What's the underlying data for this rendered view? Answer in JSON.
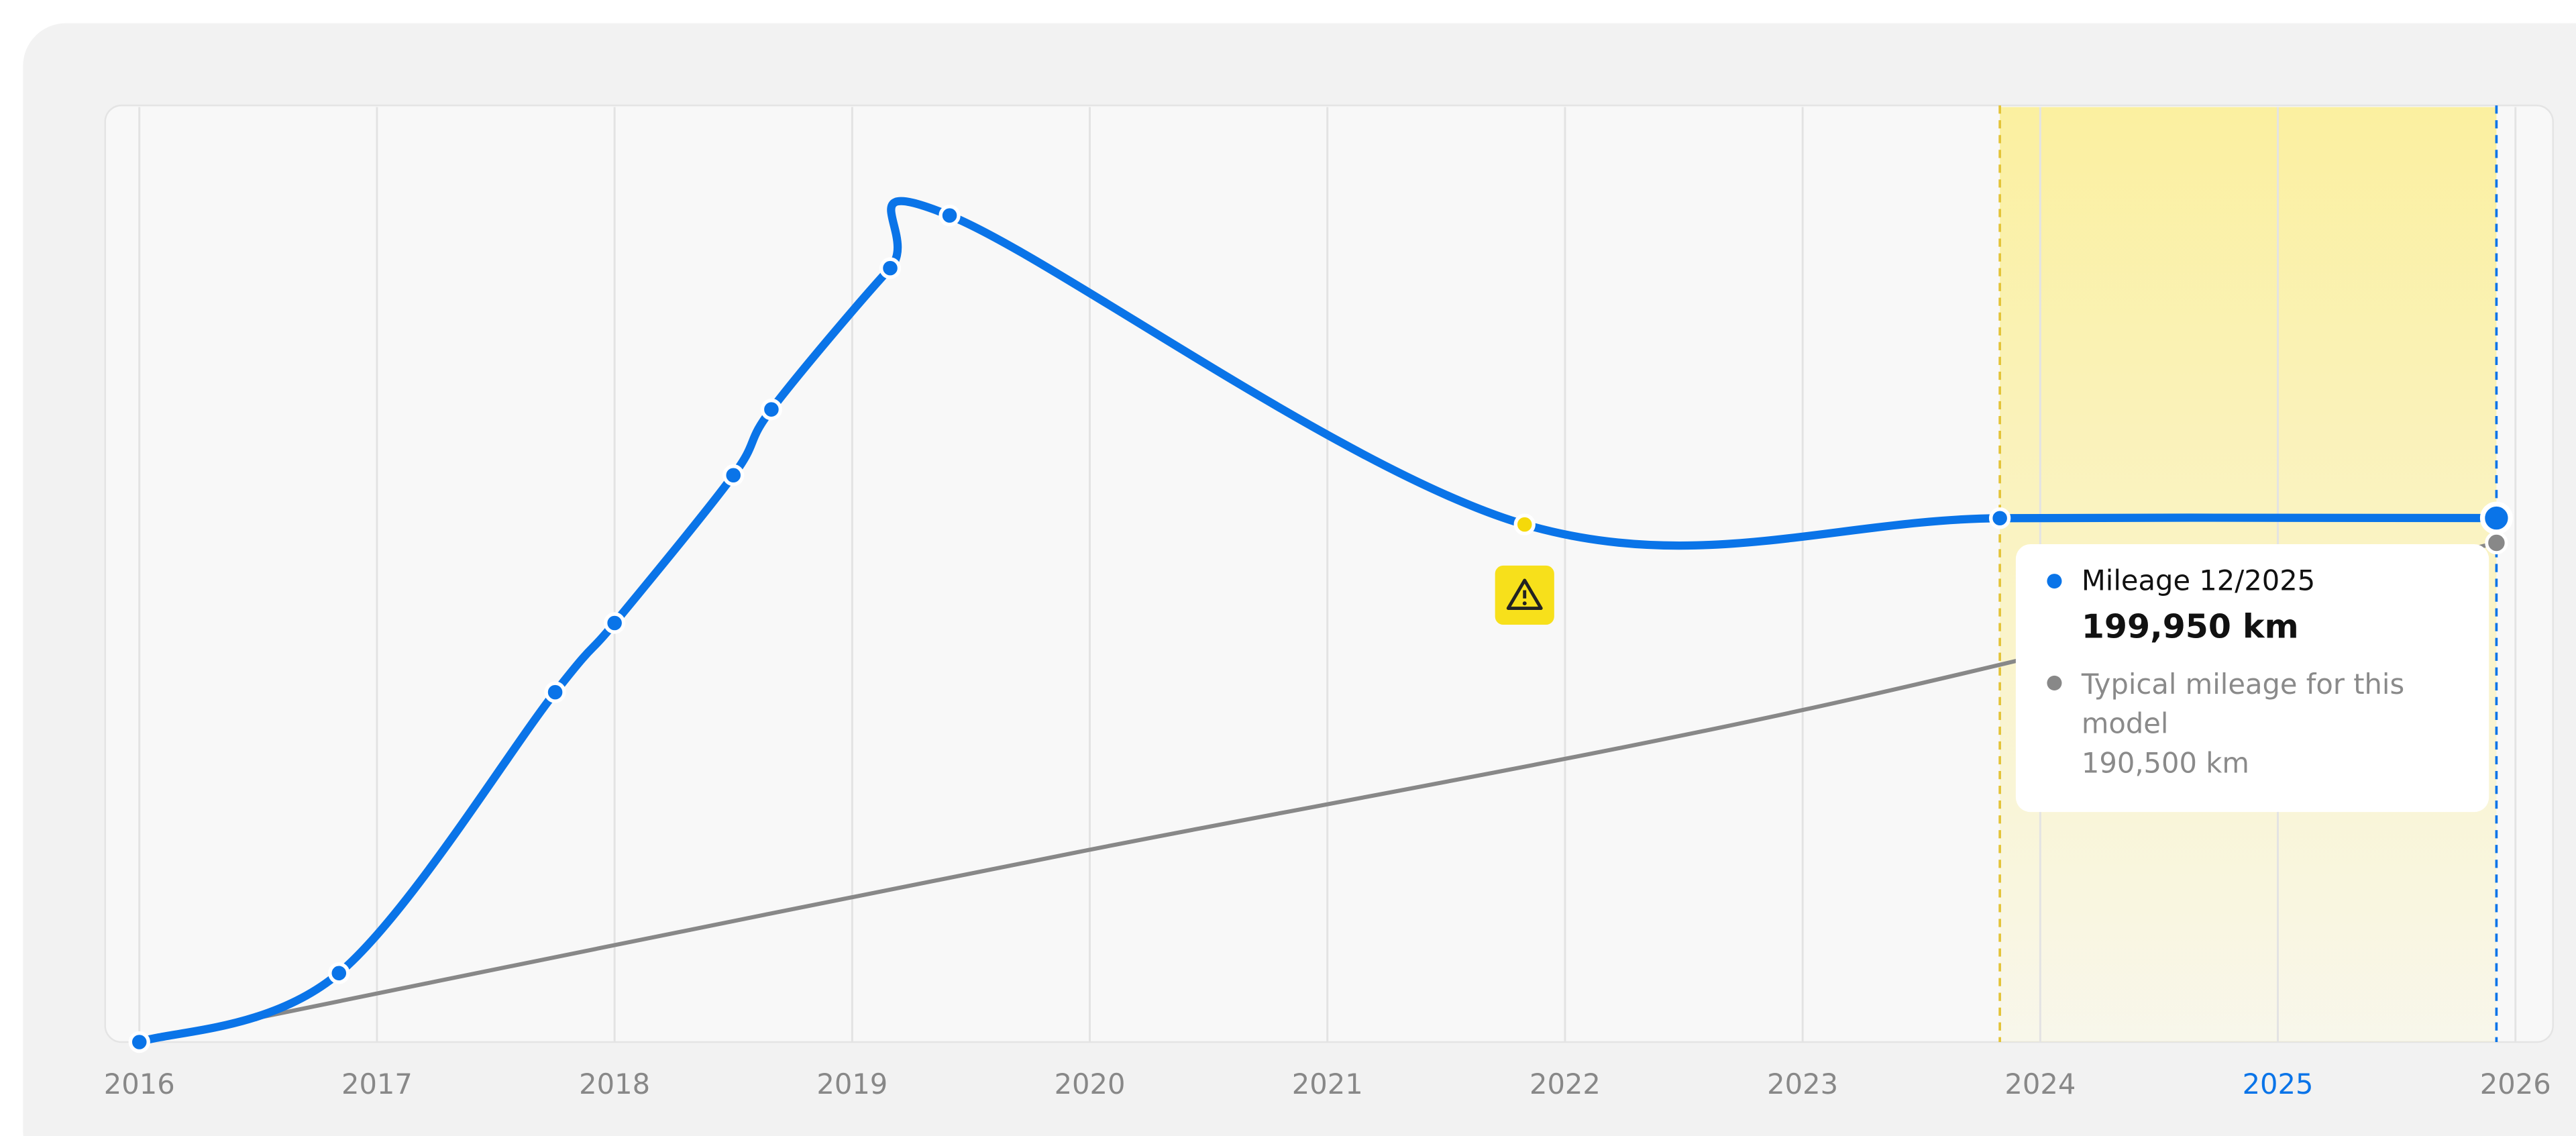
{
  "chart_data": {
    "type": "line",
    "xlim": [
      2015.856,
      2026.158
    ],
    "ylim": [
      0,
      357400
    ],
    "xticks": [
      2016,
      2017,
      2018,
      2019,
      2020,
      2021,
      2022,
      2023,
      2024,
      2025,
      2026
    ],
    "grid": true,
    "warning_points": [
      8
    ],
    "series": [
      {
        "name": "Mileage 12/2025",
        "color": "#0a74e8",
        "x": [
          2016.0,
          2016.84,
          2017.75,
          2018.0,
          2018.5,
          2018.66,
          2019.16,
          2019.41,
          2021.83,
          2023.83,
          2025.92
        ],
        "values": [
          0,
          26300,
          133500,
          159900,
          216300,
          241400,
          295300,
          315400,
          197500,
          199900,
          199950
        ],
        "value_label": "199,950 km"
      },
      {
        "name": "Typical mileage for this model",
        "color": "#888888",
        "x": [
          2016.0,
          2018.0,
          2020.0,
          2023.0,
          2025.92
        ],
        "values": [
          0,
          37000,
          73400,
          126700,
          190500
        ],
        "value_label": "190,500 km"
      }
    ]
  }
}
